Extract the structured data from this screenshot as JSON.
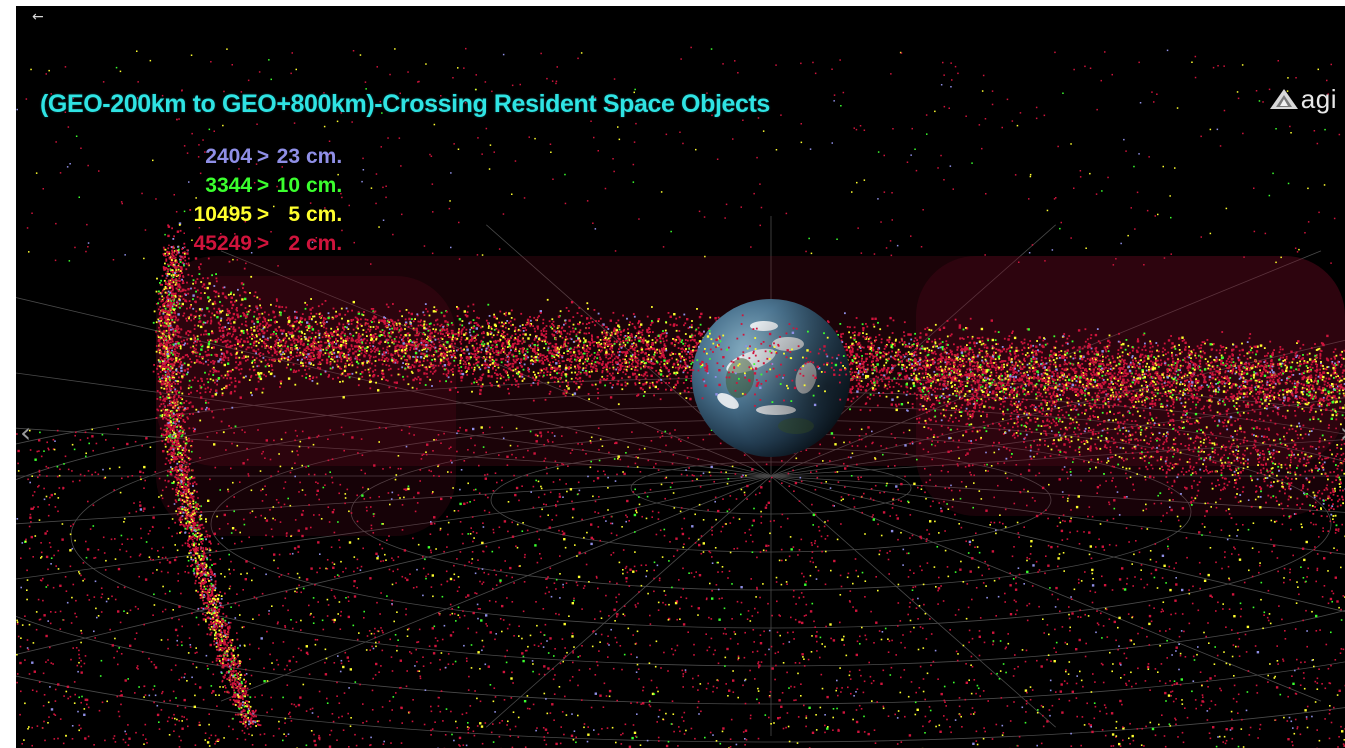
{
  "viewer": {
    "title": "(GEO-200km to GEO+800km)-Crossing Resident Space Objects",
    "back_label": "←",
    "prev_label": "‹",
    "next_label": "›",
    "logo_text": "agi",
    "legend": [
      {
        "count": "2404",
        "sep": ">",
        "size": "23",
        "unit": "cm.",
        "color": "#8f8fe6"
      },
      {
        "count": "3344",
        "sep": ">",
        "size": "10",
        "unit": "cm.",
        "color": "#3bff2e"
      },
      {
        "count": "10495",
        "sep": ">",
        "size": "5",
        "unit": "cm.",
        "color": "#ffff2e"
      },
      {
        "count": "45249",
        "sep": ">",
        "size": "2",
        "unit": "cm.",
        "color": "#d0143c"
      }
    ],
    "icons": {
      "back": "back-arrow-icon",
      "prev": "chevron-left-icon",
      "next": "chevron-right-icon",
      "logo": "agi-logo-icon"
    }
  }
}
